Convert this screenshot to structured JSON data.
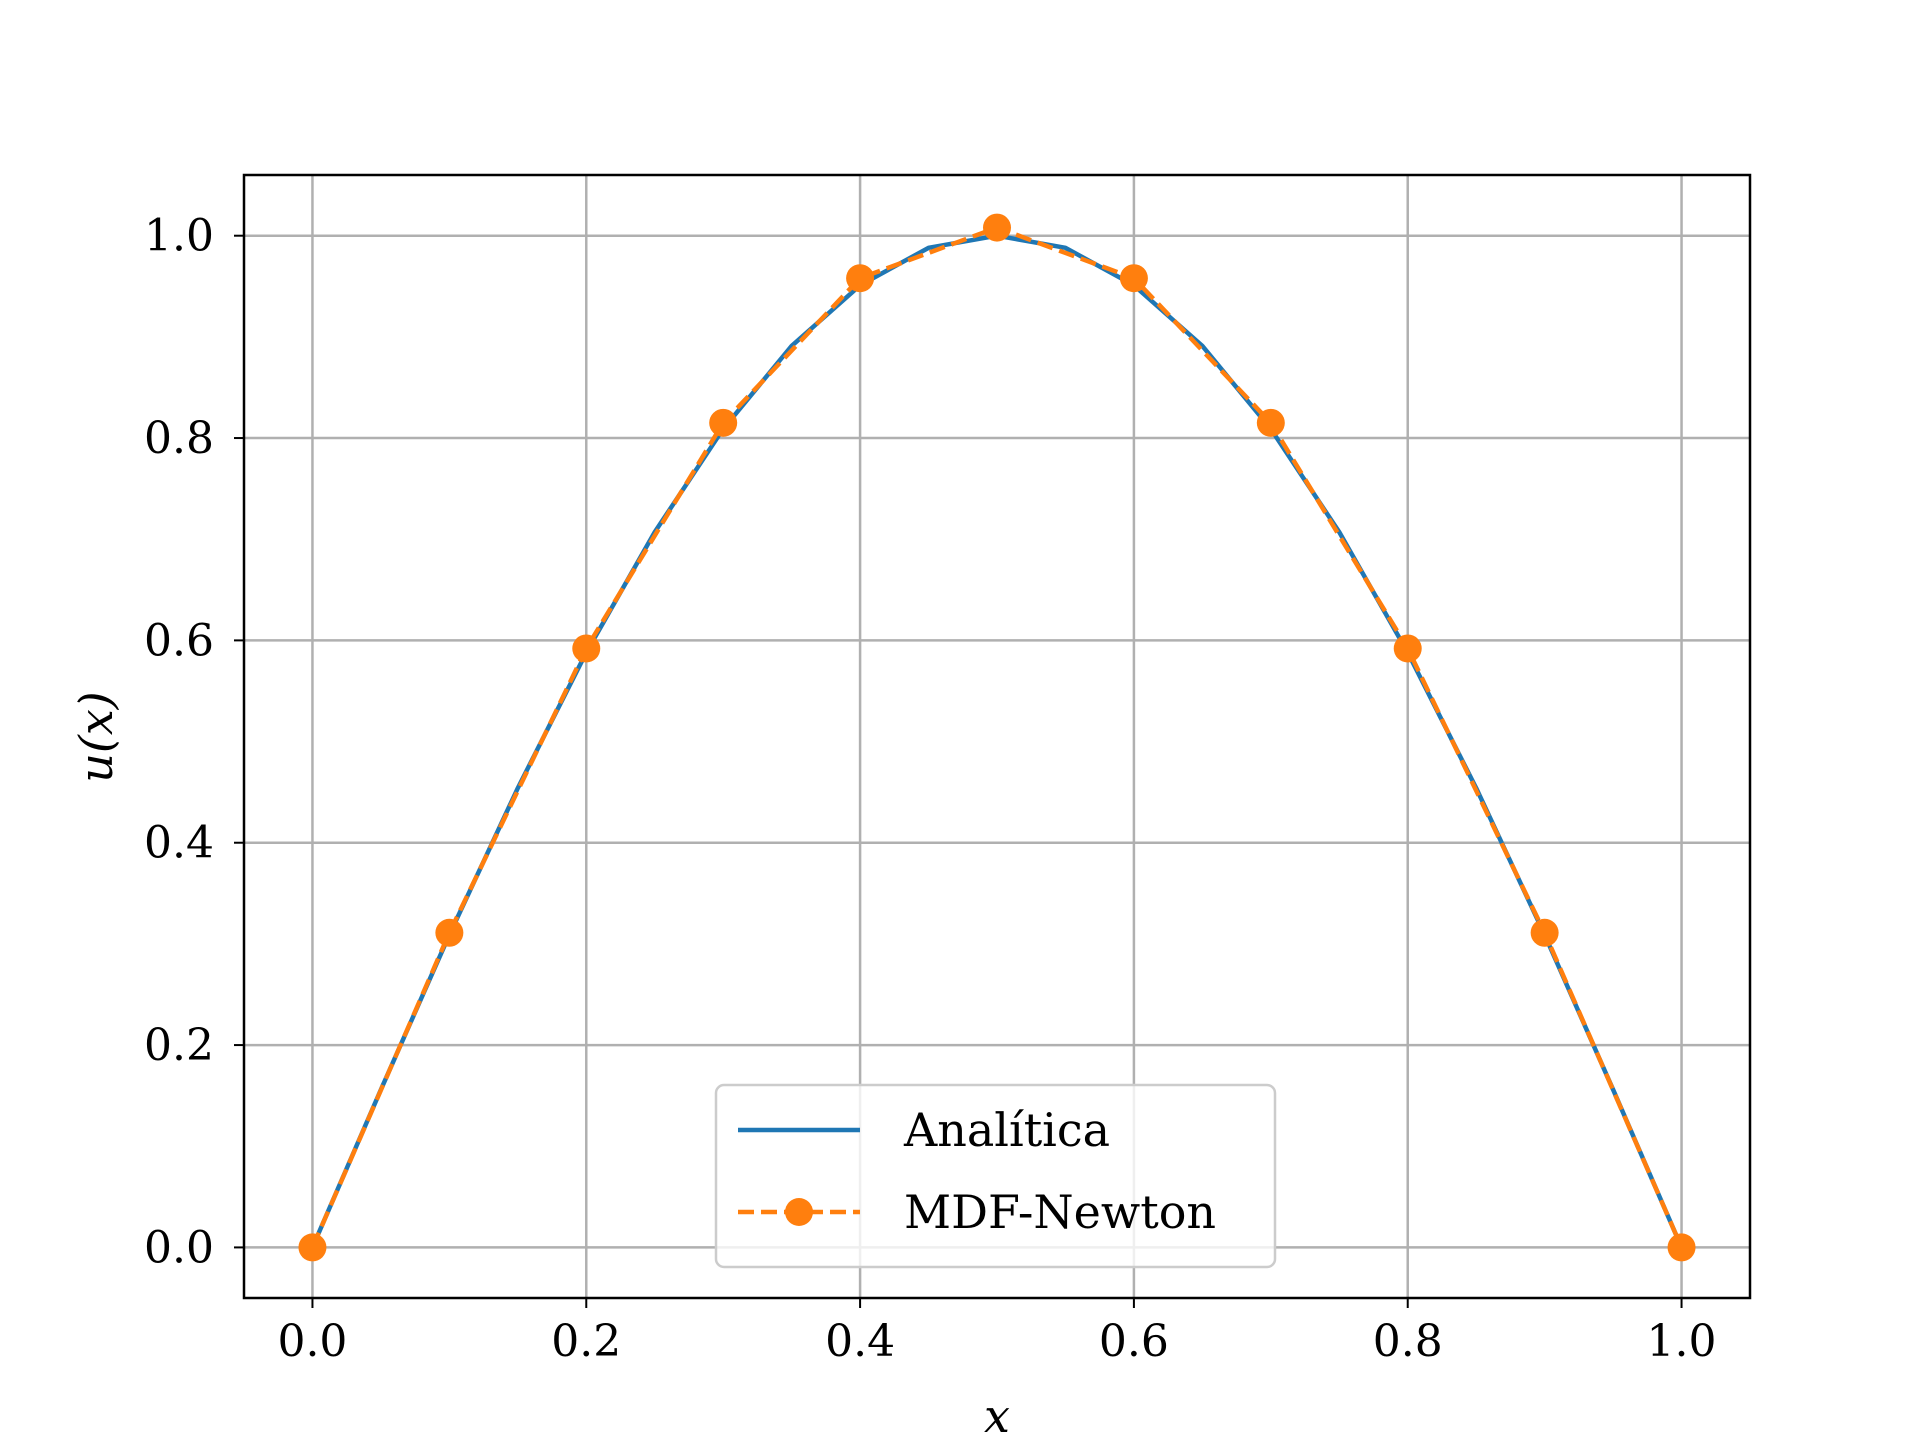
{
  "chart_data": {
    "type": "line",
    "title": "",
    "xlabel": "x",
    "ylabel": "u(x)",
    "xlim": [
      -0.05,
      1.05
    ],
    "ylim": [
      -0.05,
      1.06
    ],
    "grid": true,
    "legend_position": "lower-center",
    "x_ticks": [
      "0.0",
      "0.2",
      "0.4",
      "0.6",
      "0.8",
      "1.0"
    ],
    "y_ticks": [
      "0.0",
      "0.2",
      "0.4",
      "0.6",
      "0.8",
      "1.0"
    ],
    "x_tick_values": [
      0.0,
      0.2,
      0.4,
      0.6,
      0.8,
      1.0
    ],
    "y_tick_values": [
      0.0,
      0.2,
      0.4,
      0.6,
      0.8,
      1.0
    ],
    "series": [
      {
        "name": "Analítica",
        "style": "solid",
        "color": "#1f77b4",
        "x": [
          0.0,
          0.05,
          0.1,
          0.15,
          0.2,
          0.25,
          0.3,
          0.35,
          0.4,
          0.45,
          0.5,
          0.55,
          0.6,
          0.65,
          0.7,
          0.75,
          0.8,
          0.85,
          0.9,
          0.95,
          1.0
        ],
        "y": [
          0.0,
          0.156,
          0.309,
          0.454,
          0.588,
          0.707,
          0.809,
          0.891,
          0.951,
          0.988,
          1.0,
          0.988,
          0.951,
          0.891,
          0.809,
          0.707,
          0.588,
          0.454,
          0.309,
          0.156,
          0.0
        ]
      },
      {
        "name": "MDF-Newton",
        "style": "dashed-markers",
        "color": "#ff7f0e",
        "x": [
          0.0,
          0.1,
          0.2,
          0.3,
          0.4,
          0.5,
          0.6,
          0.7,
          0.8,
          0.9,
          1.0
        ],
        "y": [
          0.0,
          0.311,
          0.592,
          0.815,
          0.958,
          1.008,
          0.958,
          0.815,
          0.592,
          0.311,
          0.0
        ]
      }
    ]
  }
}
